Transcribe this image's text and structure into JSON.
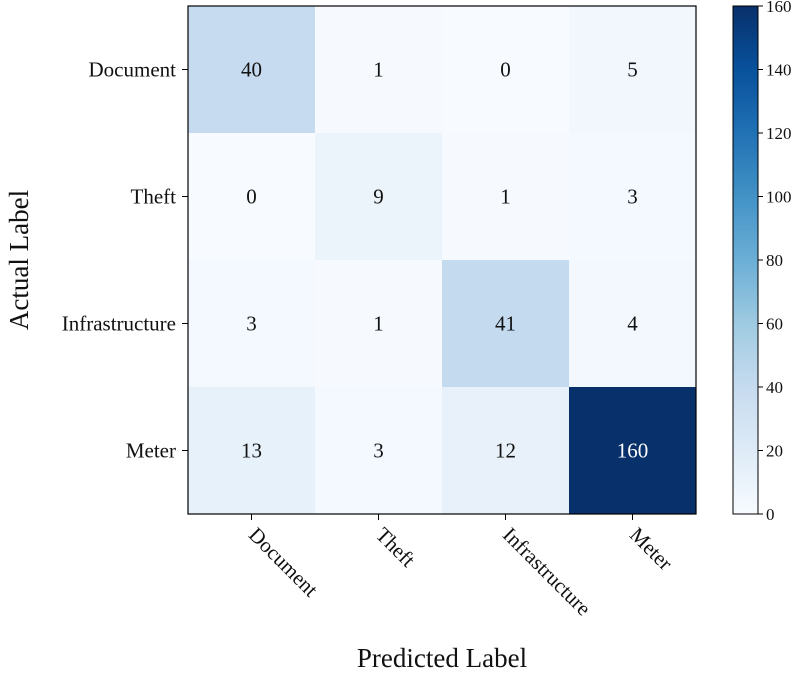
{
  "chart_data": {
    "type": "heatmap",
    "xlabel": "Predicted Label",
    "ylabel": "Actual Label",
    "x_categories": [
      "Document",
      "Theft",
      "Infrastructure",
      "Meter"
    ],
    "y_categories": [
      "Document",
      "Theft",
      "Infrastructure",
      "Meter"
    ],
    "matrix": [
      [
        40,
        1,
        0,
        5
      ],
      [
        0,
        9,
        1,
        3
      ],
      [
        3,
        1,
        41,
        4
      ],
      [
        13,
        3,
        12,
        160
      ]
    ],
    "colorbar": {
      "min": 0,
      "max": 160,
      "ticks": [
        0,
        20,
        40,
        60,
        80,
        100,
        120,
        140,
        160
      ],
      "colormap": "Blues"
    },
    "grid": false
  }
}
